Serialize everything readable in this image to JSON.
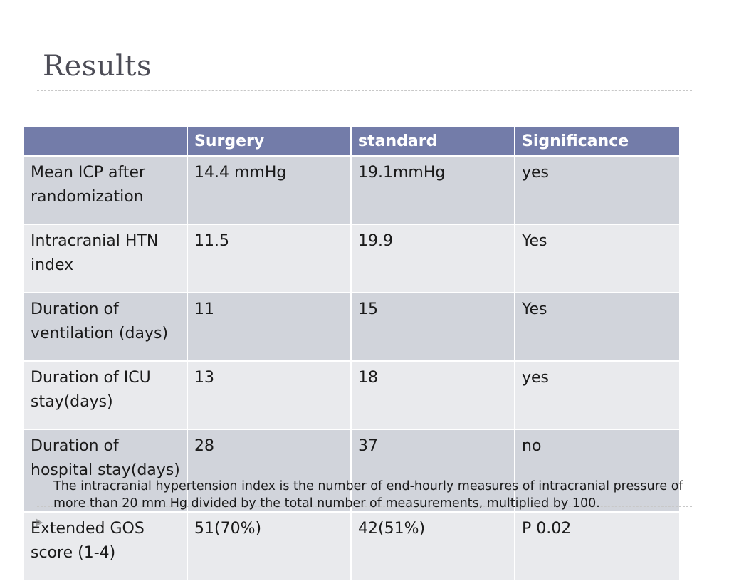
{
  "slide": {
    "title": "Results"
  },
  "table": {
    "headers": [
      "",
      "Surgery",
      "standard",
      "Significance"
    ],
    "rows": [
      [
        "Mean ICP after randomization",
        "14.4 mmHg",
        "19.1mmHg",
        "yes"
      ],
      [
        "Intracranial HTN index",
        "11.5",
        "19.9",
        "Yes"
      ],
      [
        "Duration of ventilation (days)",
        "11",
        "15",
        "Yes"
      ],
      [
        "Duration of ICU stay(days)",
        "13",
        "18",
        "yes"
      ],
      [
        "Duration of hospital stay(days)",
        "28",
        "37",
        "no"
      ],
      [
        "Extended GOS score (1-4)",
        "51(70%)",
        "42(51%)",
        "P 0.02"
      ]
    ]
  },
  "footnote": {
    "text": "The intracranial hypertension index is the number of end-hourly measures of intracranial pressure of more than 20 mm Hg divided by the total number of measurements, multiplied by 100."
  },
  "colors": {
    "header_bg": "#737ca9",
    "row_dark": "#d1d4db",
    "row_light": "#e9eaed",
    "title": "#4d4d57"
  }
}
